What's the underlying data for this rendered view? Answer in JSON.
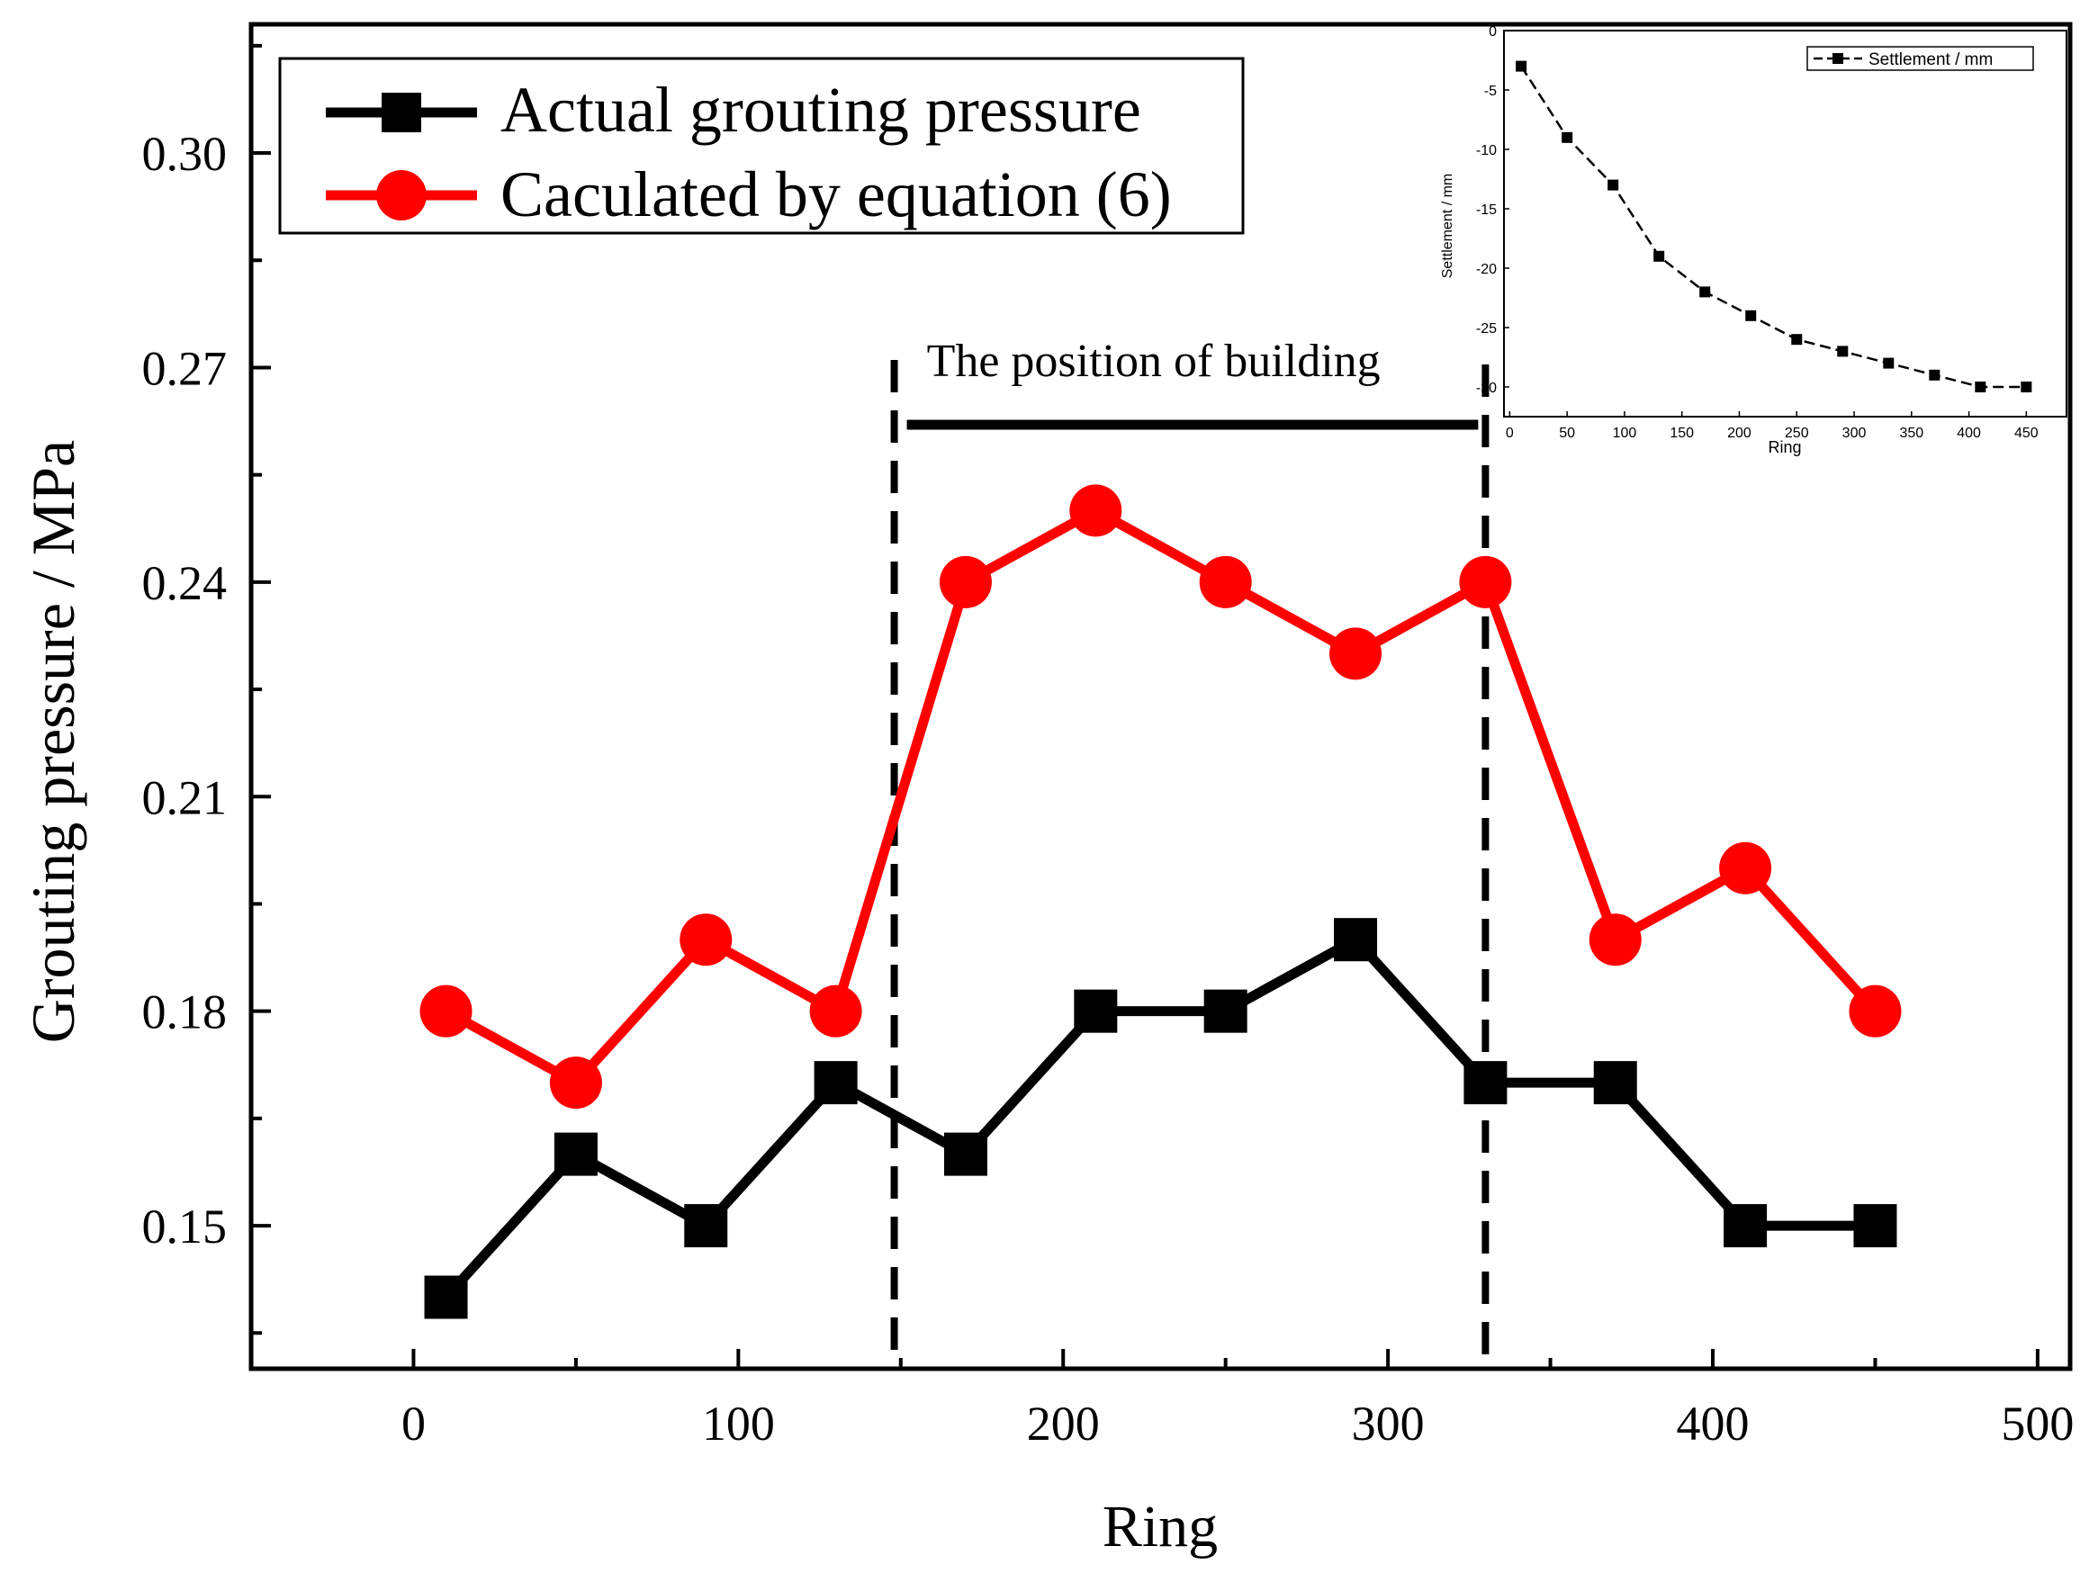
{
  "chart_data": [
    {
      "type": "line",
      "xlabel": "Ring",
      "ylabel": "Grouting pressure / MPa",
      "xlim": [
        -50,
        510
      ],
      "ylim": [
        0.13,
        0.318
      ],
      "x_ticks": [
        0,
        100,
        200,
        300,
        400,
        500
      ],
      "x_tick_labels": [
        "0",
        "100",
        "200",
        "300",
        "400",
        "500"
      ],
      "y_ticks": [
        0.15,
        0.18,
        0.21,
        0.24,
        0.27,
        0.3
      ],
      "y_tick_labels": [
        "0.15",
        "0.18",
        "0.21",
        "0.24",
        "0.27",
        "0.30"
      ],
      "x": [
        10,
        50,
        90,
        130,
        170,
        210,
        250,
        290,
        330,
        370,
        410,
        450
      ],
      "series": [
        {
          "name": "Actual grouting pressure",
          "color": "#000000",
          "marker": "square",
          "values": [
            0.14,
            0.16,
            0.15,
            0.17,
            0.16,
            0.18,
            0.18,
            0.19,
            0.17,
            0.17,
            0.15,
            0.15
          ]
        },
        {
          "name": "Caculated by equation (6)",
          "color": "#ff0000",
          "marker": "circle",
          "values": [
            0.18,
            0.17,
            0.19,
            0.18,
            0.24,
            0.25,
            0.24,
            0.23,
            0.24,
            0.19,
            0.2,
            0.18
          ]
        }
      ],
      "legend_position": "top-left",
      "annotation": {
        "text": "The position of building",
        "x_start": 148,
        "x_end": 330,
        "y_level": 0.262
      }
    },
    {
      "type": "line",
      "role": "inset",
      "xlabel": "Ring",
      "ylabel": "Settlement / mm",
      "xlim": [
        -5,
        485
      ],
      "ylim": [
        -32.5,
        0
      ],
      "x_ticks": [
        0,
        50,
        100,
        150,
        200,
        250,
        300,
        350,
        400,
        450
      ],
      "x_tick_labels": [
        "0",
        "50",
        "100",
        "150",
        "200",
        "250",
        "300",
        "350",
        "400",
        "450"
      ],
      "y_ticks": [
        0,
        -5,
        -10,
        -15,
        -20,
        -25,
        -30
      ],
      "y_tick_labels": [
        "0",
        "-5",
        "-10",
        "-15",
        "-20",
        "-25",
        "-30"
      ],
      "x": [
        10,
        50,
        90,
        130,
        170,
        210,
        250,
        290,
        330,
        370,
        410,
        450
      ],
      "series": [
        {
          "name": "Settlement / mm",
          "color": "#000000",
          "marker": "square",
          "line_style": "dashed",
          "values": [
            -3,
            -9,
            -13,
            -19,
            -22,
            -24,
            -26,
            -27,
            -28,
            -29,
            -30,
            -30
          ]
        }
      ],
      "legend_position": "top-right"
    }
  ]
}
